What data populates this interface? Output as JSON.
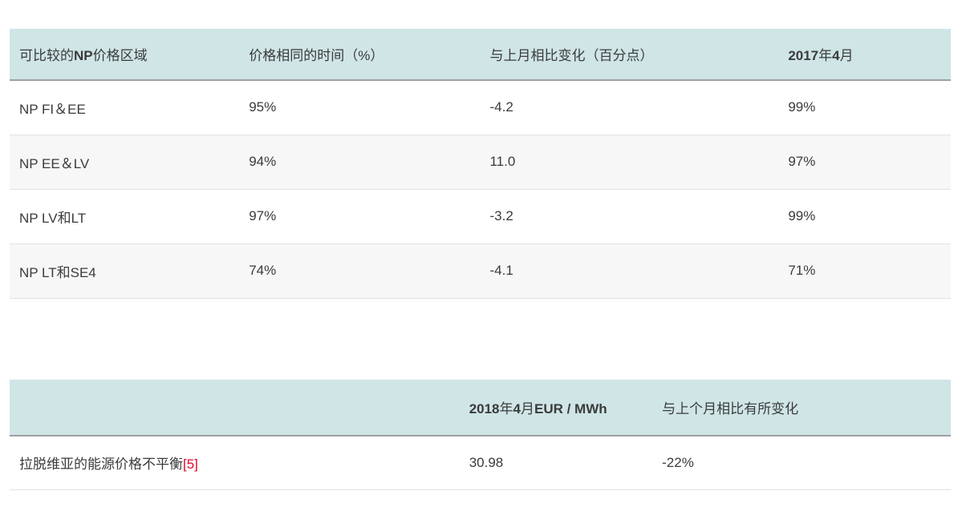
{
  "colors": {
    "header_background": "#cfe5e6",
    "row_stripe": "#f7f7f7",
    "header_border": "#9f9f9f",
    "row_border": "#e3e3e3",
    "text": "#3b3b3b",
    "footnote_red": "#e2062c"
  },
  "tables": [
    {
      "name": "comparable-np-price-areas-table",
      "column_widths": [
        "24.4%",
        "25.6%",
        "31.7%",
        "18.3%"
      ],
      "header": [
        {
          "segments": [
            {
              "t": "可比较的"
            },
            {
              "t": "NP",
              "b": true
            },
            {
              "t": "价格区域"
            }
          ]
        },
        {
          "segments": [
            {
              "t": "价格相同的时间（%）"
            }
          ]
        },
        {
          "segments": [
            {
              "t": "与上月相比变化（百分点）"
            }
          ]
        },
        {
          "segments": [
            {
              "t": "2017",
              "b": true
            },
            {
              "t": "年"
            },
            {
              "t": "4",
              "b": true
            },
            {
              "t": "月"
            }
          ]
        }
      ],
      "rows": [
        [
          "NP FI＆EE",
          "95%",
          "-4.2",
          "99%"
        ],
        [
          "NP EE＆LV",
          "94%",
          "11.0",
          "97%"
        ],
        [
          "NP LV和LT",
          "97%",
          "-3.2",
          "99%"
        ],
        [
          "NP LT和SE4",
          "74%",
          "-4.1",
          "71%"
        ]
      ]
    },
    {
      "name": "latvia-energy-price-imbalance-table",
      "column_widths": [
        "47.8%",
        "20.5%",
        "31.7%"
      ],
      "header": [
        {
          "segments": []
        },
        {
          "segments": [
            {
              "t": "2018",
              "b": true
            },
            {
              "t": "年"
            },
            {
              "t": "4",
              "b": true
            },
            {
              "t": "月"
            },
            {
              "t": "EUR / MWh",
              "b": true
            }
          ]
        },
        {
          "segments": [
            {
              "t": "与上个月相比有所变化"
            }
          ]
        }
      ],
      "rows": [
        [
          {
            "segments": [
              {
                "t": "拉脱维亚的能源价格不平衡"
              },
              {
                "t": "[5]",
                "red": true,
                "interactable": true,
                "name": "footnote-link-5"
              }
            ]
          },
          "30.98",
          "-22%"
        ]
      ]
    }
  ]
}
